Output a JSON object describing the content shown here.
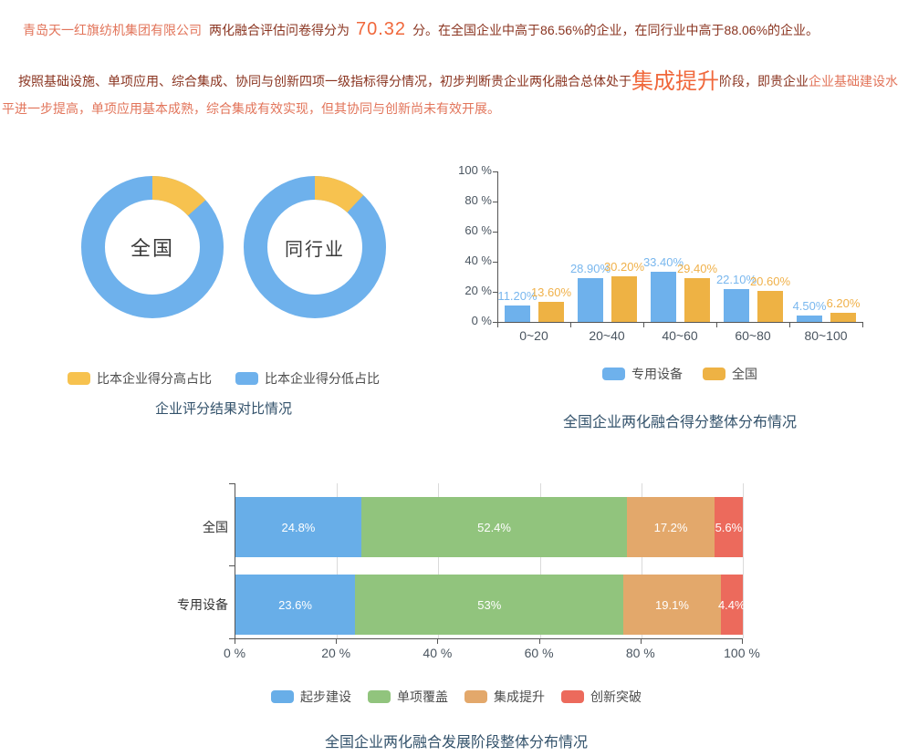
{
  "header": {
    "company": "青岛天一红旗纺机集团有限公司",
    "score_prefix": "两化融合评估问卷得分为",
    "score": "70.32",
    "score_suffix": "分。在全国企业中高于86.56%的企业，在同行业中高于88.06%的企业。",
    "analysis_lead": "按照基础设施、单项应用、综合集成、协同与创新四项一级指标得分情况，初步判断贵企业两化融合总体处于",
    "stage": "集成提升",
    "analysis_mid": "阶段，即贵企业",
    "analysis_tail": "企业基础建设水平进一步提高，单项应用基本成熟，综合集成有效实现，但其协同与创新尚未有效开展。"
  },
  "colors": {
    "dark_red_text": "#8A3420",
    "coral_text": "#E2745A",
    "highlight_orange": "#F0683C",
    "title_blue": "#33526B",
    "axis_text": "#4a5560"
  },
  "chart_data": [
    {
      "type": "pie",
      "subtype": "donut-pair",
      "title": "企业评分结果对比情况",
      "legend": [
        {
          "label": "比本企业得分高占比",
          "color": "#F7C24F"
        },
        {
          "label": "比本企业得分低占比",
          "color": "#6EB1EC"
        }
      ],
      "donuts": [
        {
          "label": "全国",
          "higher_pct": 13.44,
          "lower_pct": 86.56
        },
        {
          "label": "同行业",
          "higher_pct": 11.94,
          "lower_pct": 88.06
        }
      ]
    },
    {
      "type": "bar",
      "subtype": "grouped-vertical",
      "title": "全国企业两化融合得分整体分布情况",
      "categories": [
        "0~20",
        "20~40",
        "40~60",
        "60~80",
        "80~100"
      ],
      "series": [
        {
          "name": "专用设备",
          "color": "#6EB1EC",
          "label_color": "#79B7EE",
          "values": [
            11.2,
            28.9,
            33.4,
            22.1,
            4.5
          ],
          "labels": [
            "11.20%",
            "28.90%",
            "33.40%",
            "22.10%",
            "4.50%"
          ]
        },
        {
          "name": "全国",
          "color": "#EEB244",
          "label_color": "#F0B14A",
          "values": [
            13.6,
            30.2,
            29.4,
            20.6,
            6.2
          ],
          "labels": [
            "13.60%",
            "30.20%",
            "29.40%",
            "20.60%",
            "6.20%"
          ]
        }
      ],
      "ylim": [
        0,
        100
      ],
      "yticks": [
        "0 %",
        "20 %",
        "40 %",
        "60 %",
        "80 %",
        "100 %"
      ],
      "grid": false,
      "legend_position": "bottom"
    },
    {
      "type": "bar",
      "subtype": "stacked-horizontal",
      "title": "全国企业两化融合发展阶段整体分布情况",
      "categories": [
        "全国",
        "专用设备"
      ],
      "series": [
        {
          "name": "起步建设",
          "color": "#68AEE8",
          "values": [
            24.8,
            23.6
          ],
          "labels": [
            "24.8%",
            "23.6%"
          ]
        },
        {
          "name": "单项覆盖",
          "color": "#91C47D",
          "values": [
            52.4,
            53.0
          ],
          "labels": [
            "52.4%",
            "53%"
          ]
        },
        {
          "name": "集成提升",
          "color": "#E3A86B",
          "values": [
            17.2,
            19.1
          ],
          "labels": [
            "17.2%",
            "19.1%"
          ]
        },
        {
          "name": "创新突破",
          "color": "#EC6A5C",
          "values": [
            5.6,
            4.4
          ],
          "labels": [
            "5.6%",
            "4.4%"
          ]
        }
      ],
      "xlim": [
        0,
        100
      ],
      "xticks": [
        "0 %",
        "20 %",
        "40 %",
        "60 %",
        "80 %",
        "100 %"
      ],
      "grid": true,
      "legend_position": "bottom"
    }
  ]
}
